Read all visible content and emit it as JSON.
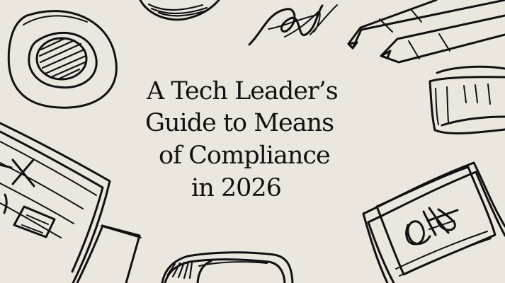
{
  "hero": {
    "title_lines": [
      "A Tech Leader’s",
      "Guide to Means",
      "of Compliance",
      "in 2026"
    ]
  },
  "colors": {
    "background": "#ebe7df",
    "ink": "#111111"
  },
  "decor": {
    "icons": [
      "sticker-icon",
      "signature-scribble-icon",
      "pencil-icon",
      "eraser-icon",
      "notebook-icon",
      "signed-document-icon",
      "book-stack-icon",
      "sketch-leaf-icon"
    ]
  }
}
